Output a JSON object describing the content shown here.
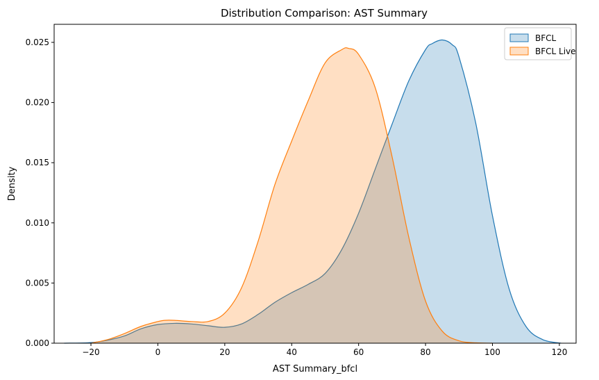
{
  "chart_data": {
    "type": "area",
    "title": "Distribution Comparison: AST Summary",
    "xlabel": "AST Summary_bfcl",
    "ylabel": "Density",
    "xlim": [
      -31,
      125
    ],
    "ylim": [
      0,
      0.0265
    ],
    "xticks": [
      -20,
      0,
      20,
      40,
      60,
      80,
      100,
      120
    ],
    "xtick_labels": [
      "−20",
      "0",
      "20",
      "40",
      "60",
      "80",
      "100",
      "120"
    ],
    "yticks": [
      0,
      0.005,
      0.01,
      0.015,
      0.02,
      0.025
    ],
    "ytick_labels": [
      "0.000",
      "0.005",
      "0.010",
      "0.015",
      "0.020",
      "0.025"
    ],
    "grid": false,
    "legend_position": "top-right",
    "series": [
      {
        "name": "BFCL",
        "color": "#1f77b4",
        "x": [
          -28,
          -20,
          -15,
          -10,
          -5,
          0,
          5,
          10,
          15,
          20,
          25,
          30,
          35,
          40,
          45,
          50,
          55,
          60,
          65,
          70,
          75,
          80,
          82,
          85,
          88,
          90,
          95,
          100,
          105,
          110,
          115,
          120.5
        ],
        "values": [
          0.0,
          5e-05,
          0.00025,
          0.0006,
          0.0012,
          0.00155,
          0.00165,
          0.0016,
          0.00145,
          0.00132,
          0.0016,
          0.0024,
          0.0034,
          0.0042,
          0.0049,
          0.0058,
          0.0078,
          0.0108,
          0.0145,
          0.0182,
          0.0218,
          0.0244,
          0.0249,
          0.0252,
          0.0248,
          0.0238,
          0.0183,
          0.0106,
          0.0045,
          0.0014,
          0.0003,
          0.0
        ]
      },
      {
        "name": "BFCL Live",
        "color": "#ff7f0e",
        "x": [
          -20,
          -15,
          -10,
          -5,
          0,
          2,
          5,
          10,
          15,
          20,
          25,
          30,
          35,
          40,
          45,
          50,
          55,
          57,
          60,
          65,
          70,
          75,
          80,
          85,
          90,
          95,
          100
        ],
        "values": [
          0.0,
          0.0003,
          0.0008,
          0.0014,
          0.0018,
          0.0019,
          0.0019,
          0.0018,
          0.0018,
          0.0025,
          0.0046,
          0.0085,
          0.0132,
          0.0168,
          0.0202,
          0.0233,
          0.0244,
          0.0245,
          0.024,
          0.0212,
          0.0155,
          0.0088,
          0.0035,
          0.001,
          0.0002,
          3e-05,
          0.0
        ]
      }
    ]
  }
}
